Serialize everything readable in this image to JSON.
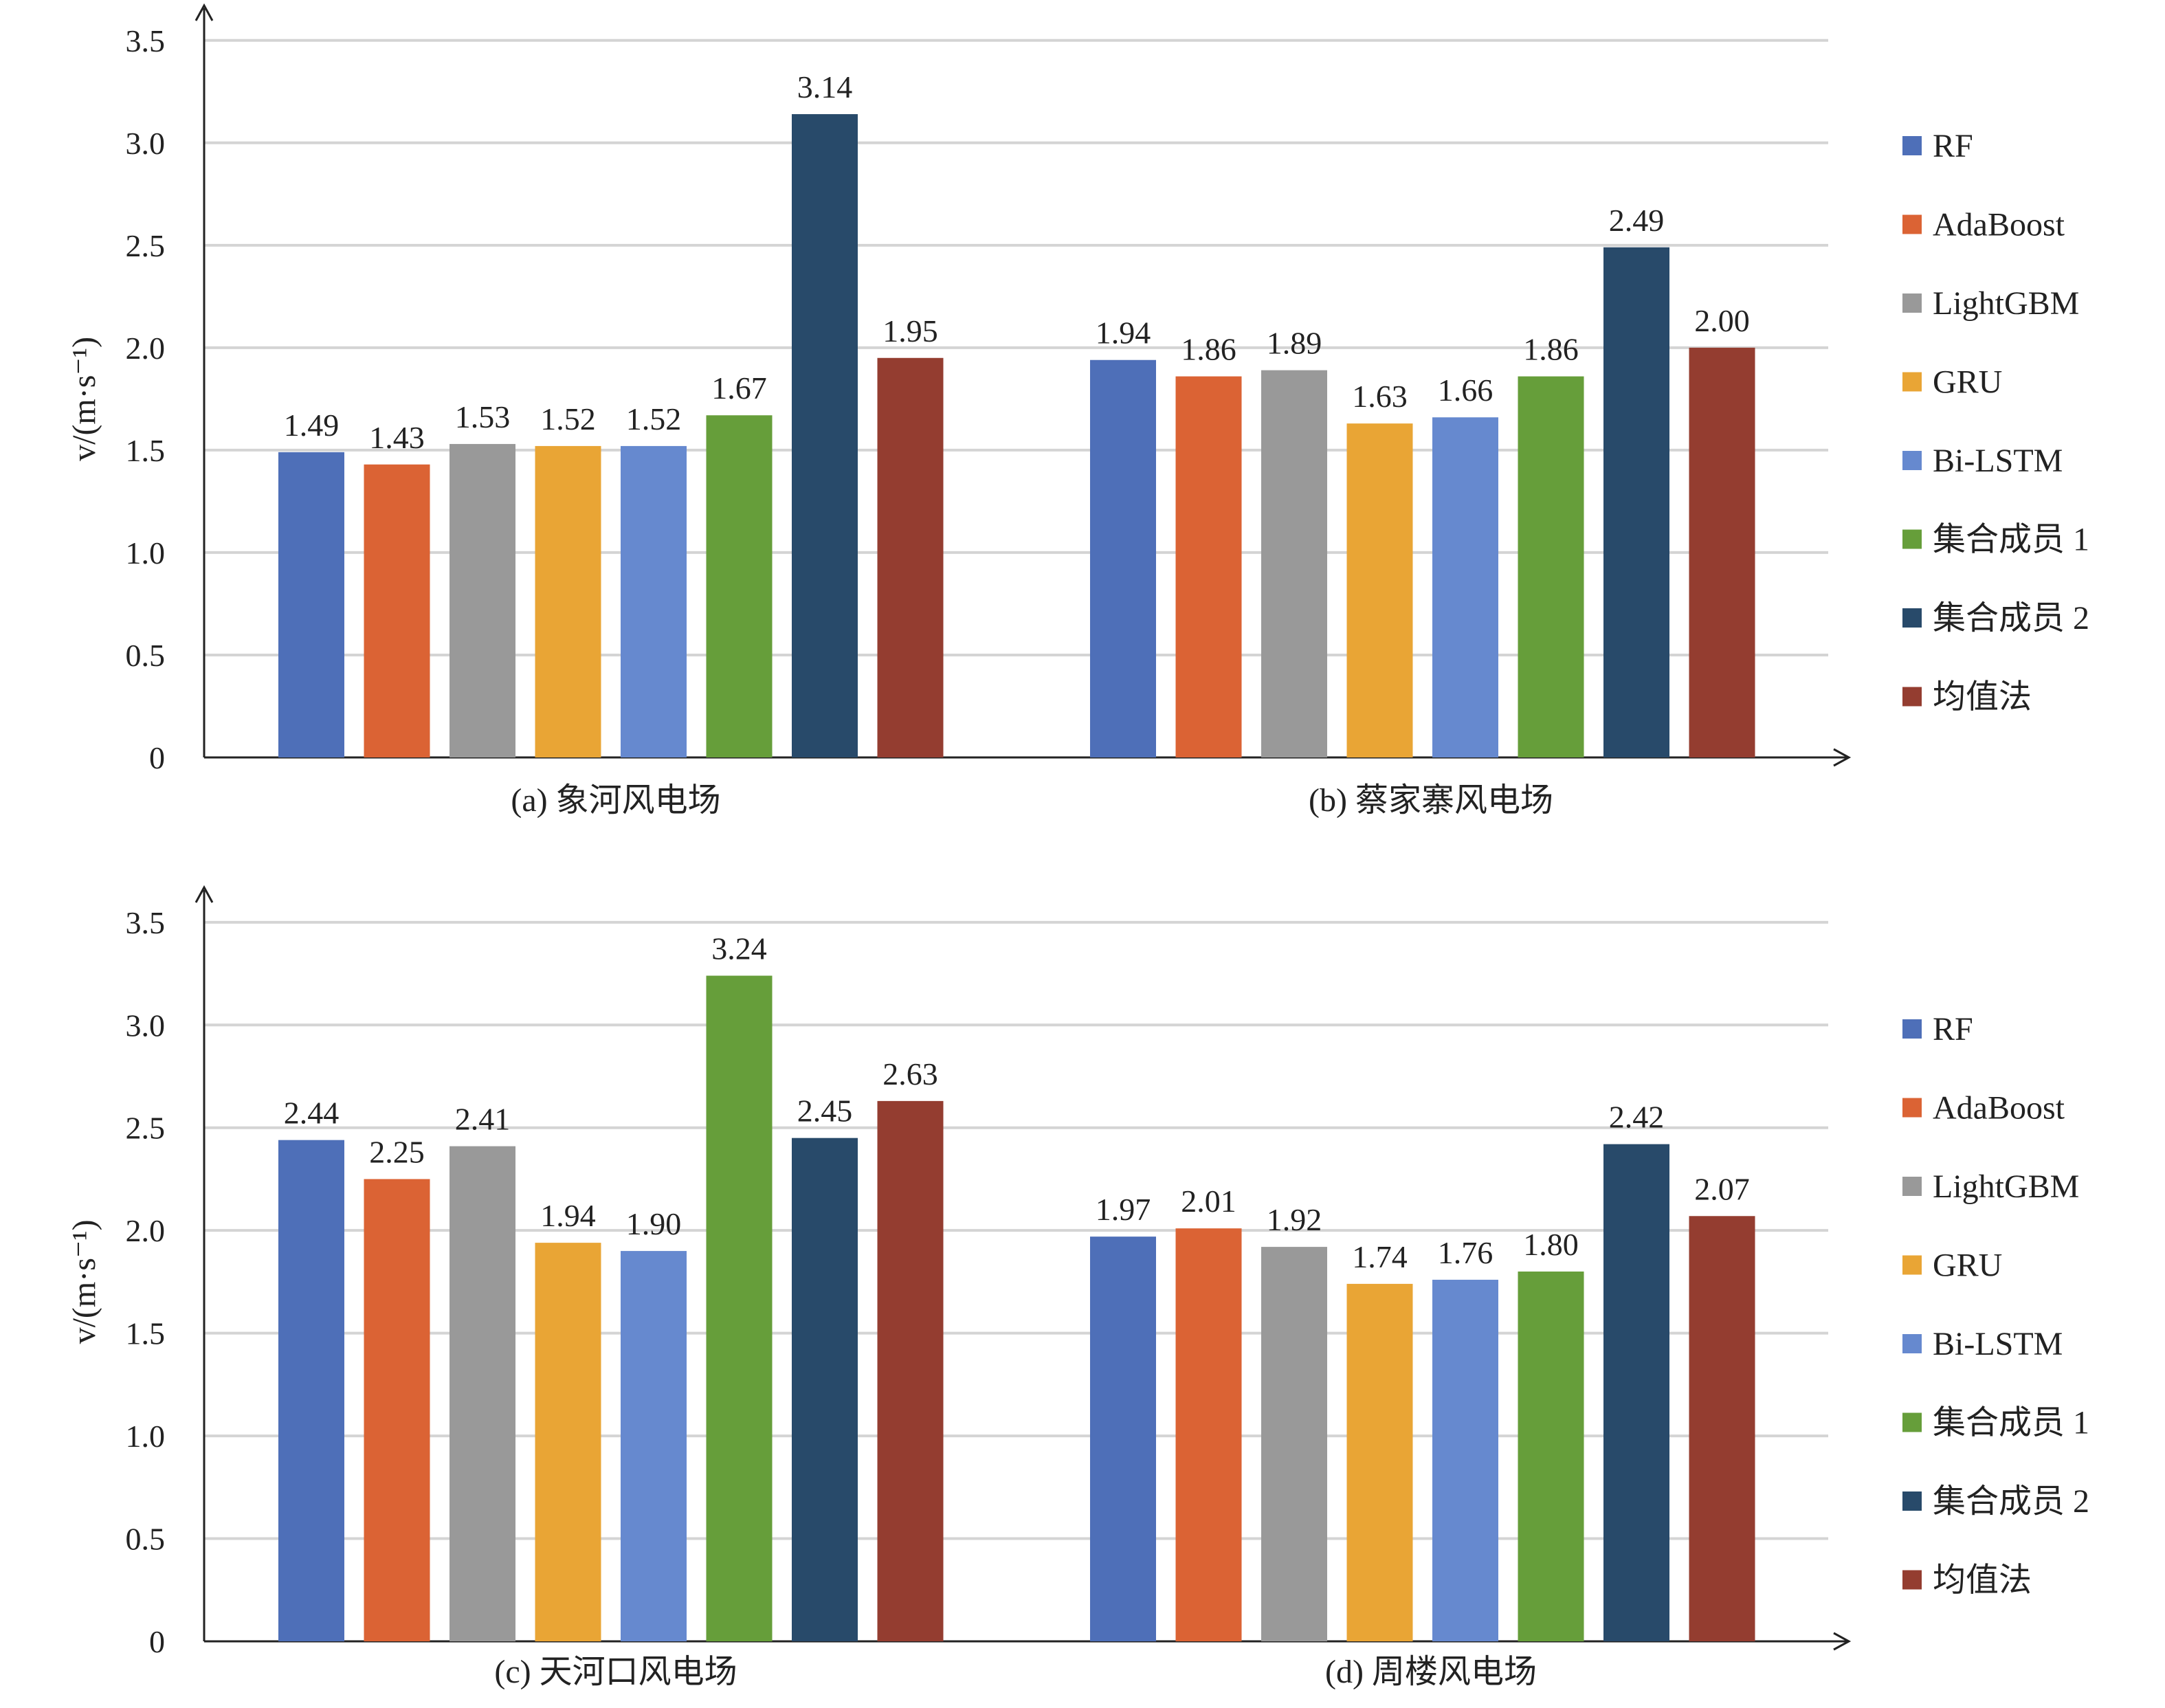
{
  "chart_data": [
    {
      "type": "bar",
      "ylabel": "v/(m·s⁻¹)",
      "ylim": [
        0,
        3.5
      ],
      "yticks": [
        "0",
        "0.5",
        "1.0",
        "1.5",
        "2.0",
        "2.5",
        "3.0",
        "3.5"
      ],
      "grid": true,
      "legend_position": "right",
      "groups": [
        {
          "label": "(a) 象河风电场",
          "values": [
            1.49,
            1.43,
            1.53,
            1.52,
            1.52,
            1.67,
            3.14,
            1.95
          ]
        },
        {
          "label": "(b) 蔡家寨风电场",
          "values": [
            1.94,
            1.86,
            1.89,
            1.63,
            1.66,
            1.86,
            2.49,
            2.0
          ]
        }
      ],
      "data_labels": [
        [
          "1.49",
          "1.43",
          "1.53",
          "1.52",
          "1.52",
          "1.67",
          "3.14",
          "1.95"
        ],
        [
          "1.94",
          "1.86",
          "1.89",
          "1.63",
          "1.66",
          "1.86",
          "2.49",
          "2.00"
        ]
      ]
    },
    {
      "type": "bar",
      "ylabel": "v/(m·s⁻¹)",
      "ylim": [
        0,
        3.5
      ],
      "yticks": [
        "0",
        "0.5",
        "1.0",
        "1.5",
        "2.0",
        "2.5",
        "3.0",
        "3.5"
      ],
      "grid": true,
      "legend_position": "right",
      "groups": [
        {
          "label": "(c) 天河口风电场",
          "values": [
            2.44,
            2.25,
            2.41,
            1.94,
            1.9,
            3.24,
            2.45,
            2.63
          ]
        },
        {
          "label": "(d) 周楼风电场",
          "values": [
            1.97,
            2.01,
            1.92,
            1.74,
            1.76,
            1.8,
            2.42,
            2.07
          ]
        }
      ],
      "data_labels": [
        [
          "2.44",
          "2.25",
          "2.41",
          "1.94",
          "1.90",
          "3.24",
          "2.45",
          "2.63"
        ],
        [
          "1.97",
          "2.01",
          "1.92",
          "1.74",
          "1.76",
          "1.80",
          "2.42",
          "2.07"
        ]
      ]
    }
  ],
  "legend": {
    "items": [
      {
        "name": "RF",
        "color": "#4e6fb8"
      },
      {
        "name": "AdaBoost",
        "color": "#db6334"
      },
      {
        "name": "LightGBM",
        "color": "#999999"
      },
      {
        "name": "GRU",
        "color": "#e9a535"
      },
      {
        "name": "Bi-LSTM",
        "color": "#6689cf"
      },
      {
        "name": "集合成员 1",
        "color": "#669e3a"
      },
      {
        "name": "集合成员 2",
        "color": "#284a6a"
      },
      {
        "name": "均值法",
        "color": "#943d30"
      }
    ]
  }
}
